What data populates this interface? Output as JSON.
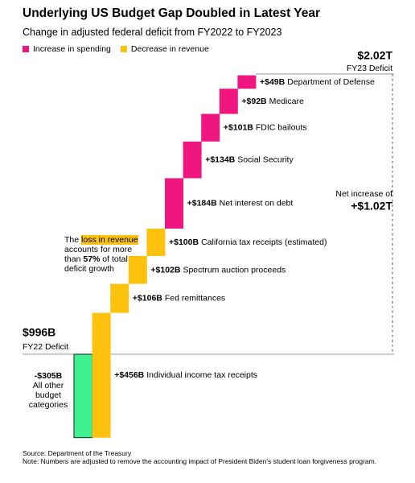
{
  "chart_data": {
    "type": "waterfall",
    "title": "Underlying US Budget Gap Doubled in Latest Year",
    "subtitle": "Change in adjusted federal deficit from FY2022 to FY2023",
    "series": [
      {
        "name": "Increase in spending",
        "color": "#f0167f"
      },
      {
        "name": "Decrease in revenue",
        "color": "#fdc20d"
      }
    ],
    "start": {
      "value": 996,
      "value_label": "$996B",
      "label": "FY22 Deficit"
    },
    "end": {
      "value": 2020,
      "value_label": "$2.02T",
      "label": "FY23 Deficit"
    },
    "net": {
      "value": 1024,
      "value_label": "+$1.02T",
      "label": "Net increase of"
    },
    "categories": [
      "All other budget categories",
      "Individual income tax receipts",
      "Fed remittances",
      "Spectrum auction proceeds",
      "California tax receipts (estimated)",
      "Net interest on debt",
      "Social Security",
      "FDIC bailouts",
      "Medicare",
      "Department of Defense"
    ],
    "values": [
      -305,
      456,
      106,
      102,
      100,
      184,
      134,
      101,
      92,
      49
    ],
    "value_labels": [
      "-$305B",
      "+$456B",
      "+$106B",
      "+$102B",
      "+$100B",
      "+$184B",
      "+$134B",
      "+$101B",
      "+$92B",
      "+$49B"
    ],
    "colors": [
      "#3ff08f",
      "#fdc20d",
      "#fdc20d",
      "#fdc20d",
      "#fdc20d",
      "#f0167f",
      "#f0167f",
      "#f0167f",
      "#f0167f",
      "#f0167f"
    ],
    "annotation": [
      "The",
      "loss in revenue",
      "accounts for more than",
      "57%",
      "of total deficit growth"
    ],
    "source": "Source: Department of the Treasury",
    "note": "Note: Numbers are adjusted to remove the accounting impact of President Biden's student loan forgiveness program."
  }
}
